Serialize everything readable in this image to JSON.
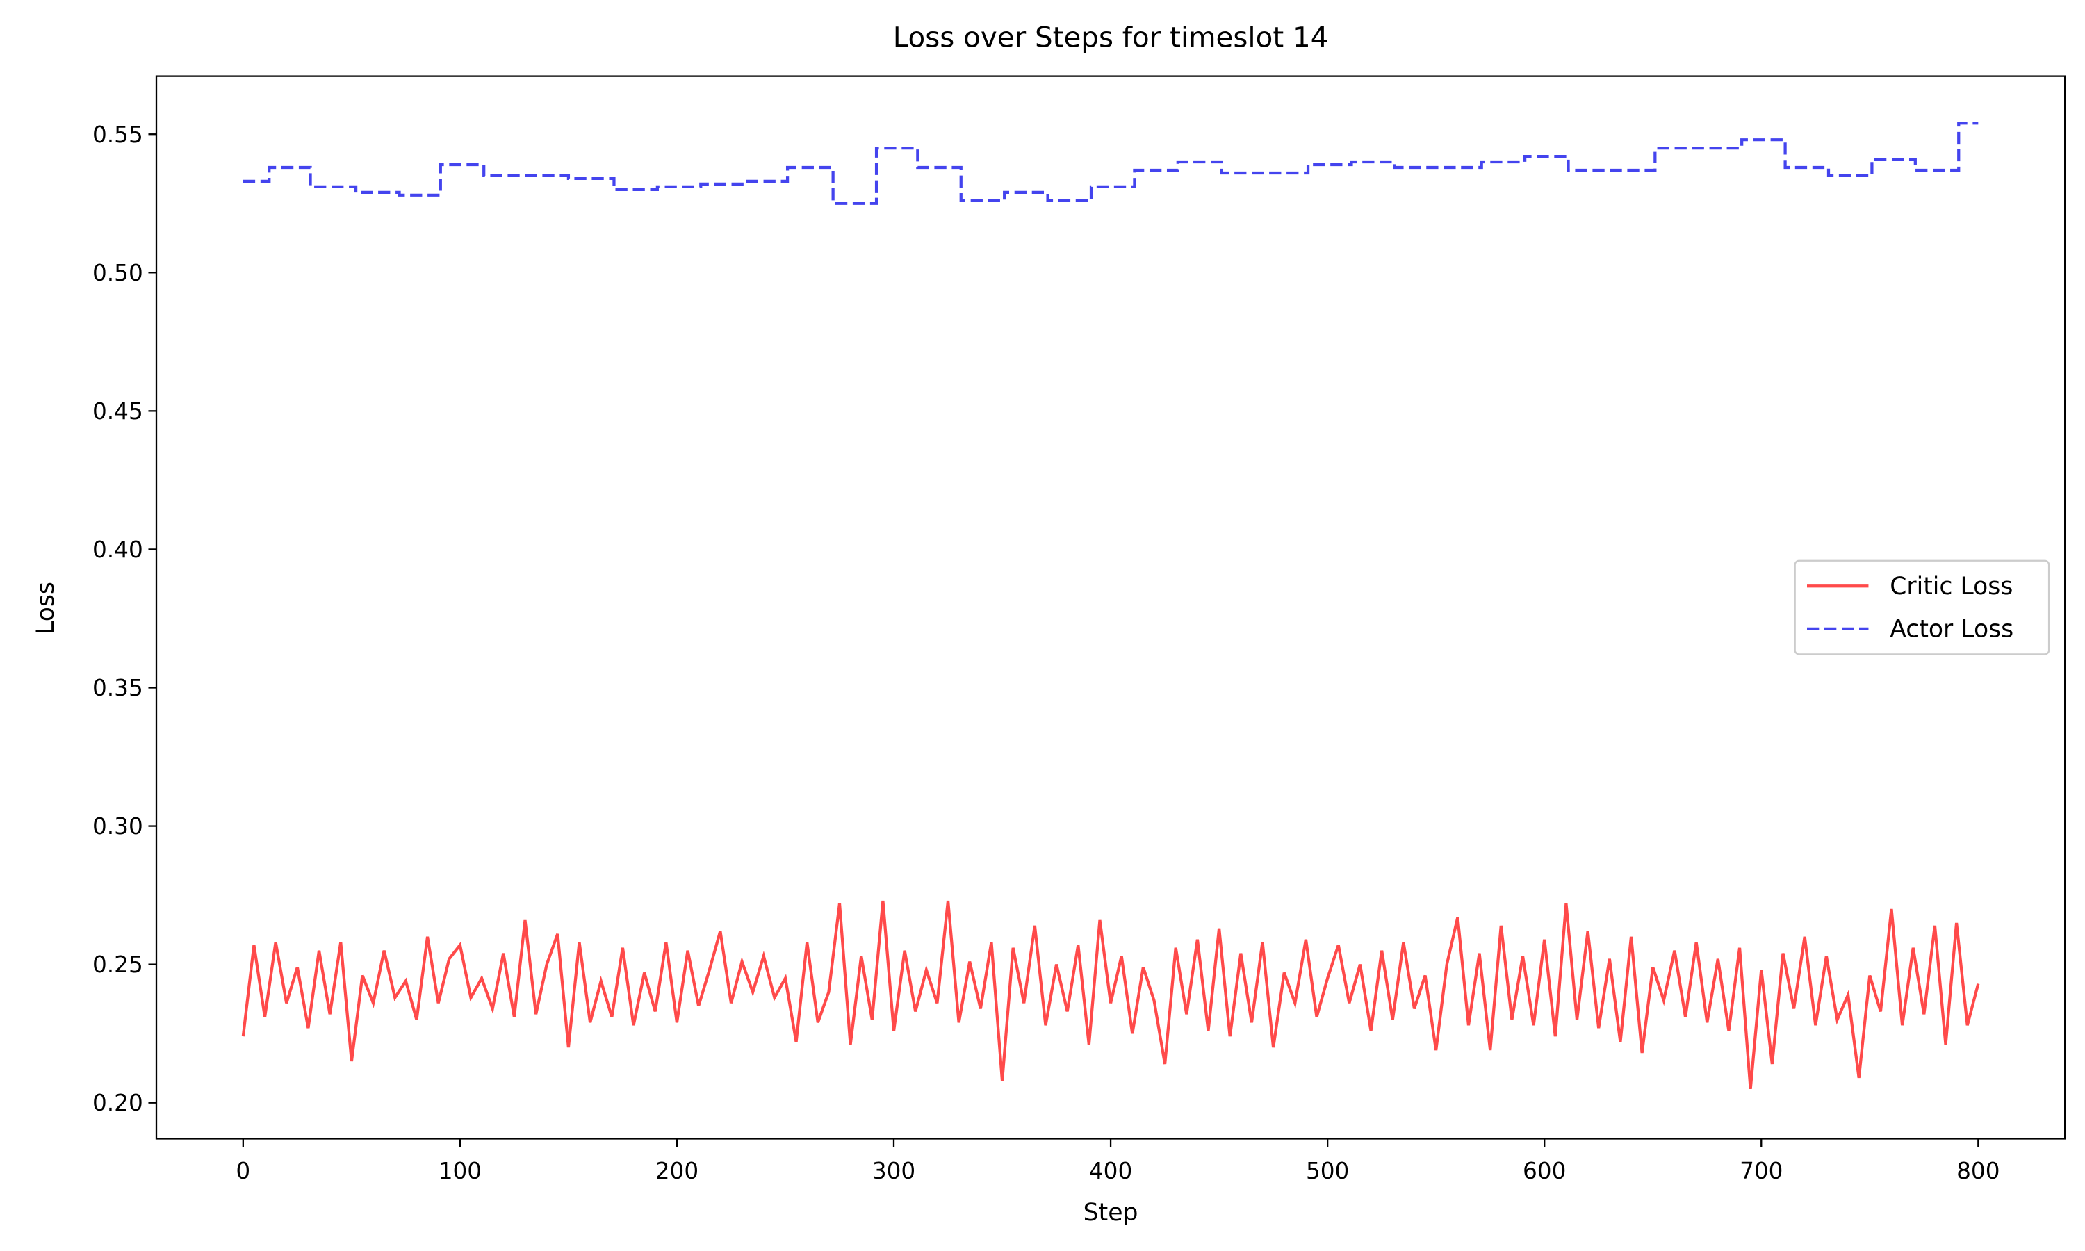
{
  "chart_data": {
    "type": "line",
    "title": "Loss over Steps for timeslot 14",
    "xlabel": "Step",
    "ylabel": "Loss",
    "xlim": [
      -40,
      840
    ],
    "ylim": [
      0.187,
      0.571
    ],
    "xticks": [
      0,
      100,
      200,
      300,
      400,
      500,
      600,
      700,
      800
    ],
    "yticks": [
      {
        "value": 0.2,
        "label": "0.20"
      },
      0.25,
      {
        "value": 0.3,
        "label": "0.30"
      },
      0.35,
      {
        "value": 0.4,
        "label": "0.40"
      },
      0.45,
      {
        "value": 0.5,
        "label": "0.50"
      },
      0.55
    ],
    "grid": false,
    "legend": "center right",
    "series": [
      {
        "name": "Critic Loss",
        "color": "#ff4a4a",
        "dash": "solid",
        "x": [
          0,
          5,
          10,
          15,
          20,
          25,
          30,
          35,
          40,
          45,
          50,
          55,
          60,
          65,
          70,
          75,
          80,
          85,
          90,
          95,
          100,
          105,
          110,
          115,
          120,
          125,
          130,
          135,
          140,
          145,
          150,
          155,
          160,
          165,
          170,
          175,
          180,
          185,
          190,
          195,
          200,
          205,
          210,
          215,
          220,
          225,
          230,
          235,
          240,
          245,
          250,
          255,
          260,
          265,
          270,
          275,
          280,
          285,
          290,
          295,
          300,
          305,
          310,
          315,
          320,
          325,
          330,
          335,
          340,
          345,
          350,
          355,
          360,
          365,
          370,
          375,
          380,
          385,
          390,
          395,
          400,
          405,
          410,
          415,
          420,
          425,
          430,
          435,
          440,
          445,
          450,
          455,
          460,
          465,
          470,
          475,
          480,
          485,
          490,
          495,
          500,
          505,
          510,
          515,
          520,
          525,
          530,
          535,
          540,
          545,
          550,
          555,
          560,
          565,
          570,
          575,
          580,
          585,
          590,
          595,
          600,
          605,
          610,
          615,
          620,
          625,
          630,
          635,
          640,
          645,
          650,
          655,
          660,
          665,
          670,
          675,
          680,
          685,
          690,
          695,
          700,
          705,
          710,
          715,
          720,
          725,
          730,
          735,
          740,
          745,
          750,
          755,
          760,
          765,
          770,
          775,
          780,
          785,
          790,
          795,
          800
        ],
        "values": [
          0.224,
          0.257,
          0.231,
          0.258,
          0.236,
          0.249,
          0.227,
          0.255,
          0.232,
          0.258,
          0.215,
          0.246,
          0.236,
          0.255,
          0.238,
          0.244,
          0.23,
          0.26,
          0.236,
          0.252,
          0.257,
          0.238,
          0.245,
          0.234,
          0.254,
          0.231,
          0.266,
          0.232,
          0.25,
          0.261,
          0.22,
          0.258,
          0.229,
          0.244,
          0.231,
          0.256,
          0.228,
          0.247,
          0.233,
          0.258,
          0.229,
          0.255,
          0.235,
          0.248,
          0.262,
          0.236,
          0.251,
          0.24,
          0.253,
          0.238,
          0.245,
          0.222,
          0.258,
          0.229,
          0.24,
          0.272,
          0.221,
          0.253,
          0.23,
          0.273,
          0.226,
          0.255,
          0.233,
          0.248,
          0.236,
          0.273,
          0.229,
          0.251,
          0.234,
          0.258,
          0.208,
          0.256,
          0.236,
          0.264,
          0.228,
          0.25,
          0.233,
          0.257,
          0.221,
          0.266,
          0.236,
          0.253,
          0.225,
          0.249,
          0.237,
          0.214,
          0.256,
          0.232,
          0.259,
          0.226,
          0.263,
          0.224,
          0.254,
          0.229,
          0.258,
          0.22,
          0.247,
          0.236,
          0.259,
          0.231,
          0.245,
          0.257,
          0.236,
          0.25,
          0.226,
          0.255,
          0.23,
          0.258,
          0.234,
          0.246,
          0.219,
          0.25,
          0.267,
          0.228,
          0.254,
          0.219,
          0.264,
          0.23,
          0.253,
          0.228,
          0.259,
          0.224,
          0.272,
          0.23,
          0.262,
          0.227,
          0.252,
          0.222,
          0.26,
          0.218,
          0.249,
          0.237,
          0.255,
          0.231,
          0.258,
          0.229,
          0.252,
          0.226,
          0.256,
          0.205,
          0.248,
          0.214,
          0.254,
          0.234,
          0.26,
          0.228,
          0.253,
          0.23,
          0.239,
          0.209,
          0.246,
          0.233,
          0.27,
          0.228,
          0.256,
          0.232,
          0.264,
          0.221,
          0.265,
          0.228,
          0.243
        ]
      },
      {
        "name": "Actor Loss",
        "color": "#4444ee",
        "dash": "dashed",
        "x": [
          0,
          12,
          12,
          31,
          31,
          52,
          52,
          72,
          72,
          91,
          91,
          111,
          111,
          150,
          150,
          171,
          171,
          191,
          191,
          211,
          211,
          231,
          231,
          251,
          251,
          272,
          272,
          292,
          292,
          311,
          311,
          331,
          331,
          351,
          351,
          371,
          371,
          391,
          391,
          411,
          411,
          431,
          431,
          451,
          451,
          491,
          491,
          511,
          511,
          531,
          531,
          571,
          571,
          591,
          591,
          611,
          611,
          651,
          651,
          691,
          691,
          711,
          711,
          731,
          731,
          751,
          751,
          771,
          771,
          791,
          791,
          800
        ],
        "values": [
          0.533,
          0.533,
          0.538,
          0.538,
          0.531,
          0.531,
          0.529,
          0.529,
          0.528,
          0.528,
          0.539,
          0.539,
          0.535,
          0.535,
          0.534,
          0.534,
          0.53,
          0.53,
          0.531,
          0.531,
          0.532,
          0.532,
          0.533,
          0.533,
          0.538,
          0.538,
          0.525,
          0.525,
          0.545,
          0.545,
          0.538,
          0.538,
          0.526,
          0.526,
          0.529,
          0.529,
          0.526,
          0.526,
          0.531,
          0.531,
          0.537,
          0.537,
          0.54,
          0.54,
          0.536,
          0.536,
          0.539,
          0.539,
          0.54,
          0.54,
          0.538,
          0.538,
          0.54,
          0.54,
          0.542,
          0.542,
          0.537,
          0.537,
          0.545,
          0.545,
          0.548,
          0.548,
          0.538,
          0.538,
          0.535,
          0.535,
          0.541,
          0.541,
          0.537,
          0.537,
          0.554,
          0.554
        ]
      }
    ]
  }
}
